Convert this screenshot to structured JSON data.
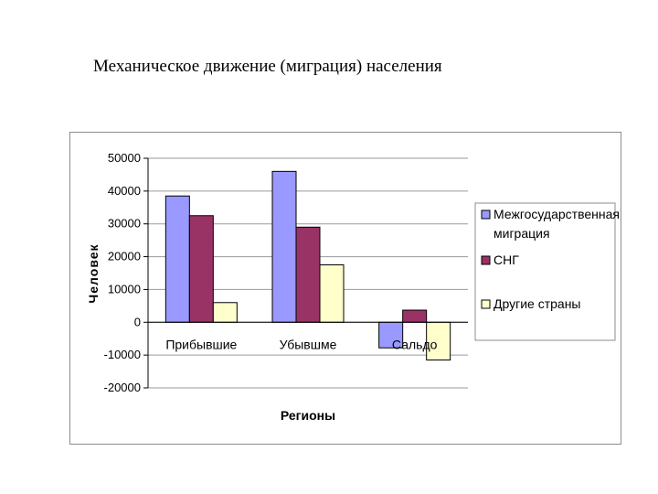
{
  "page": {
    "title": "Механическое движение (миграция) населения"
  },
  "chart_data": {
    "type": "bar",
    "categories": [
      "Прибывшие",
      "Убывшме",
      "Сальдо"
    ],
    "series": [
      {
        "name": "Межгосударственная миграция",
        "values": [
          38500,
          46000,
          -7800
        ],
        "color": "#9999ff"
      },
      {
        "name": "СНГ",
        "values": [
          32500,
          29000,
          3700
        ],
        "color": "#993366"
      },
      {
        "name": "Другие страны",
        "values": [
          6000,
          17500,
          -11500
        ],
        "color": "#ffffcc"
      }
    ],
    "title": "",
    "xlabel": "Регионы",
    "ylabel": "Человек",
    "ylim": [
      -20000,
      50000
    ],
    "yticks": [
      50000,
      40000,
      30000,
      20000,
      10000,
      0,
      -10000,
      -20000
    ],
    "grid": true,
    "legend": "right"
  }
}
